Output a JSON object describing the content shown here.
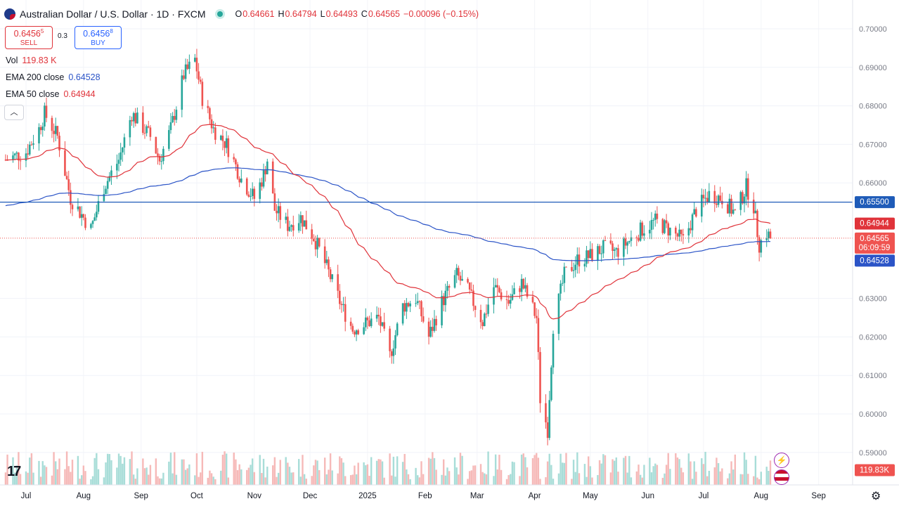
{
  "header": {
    "title": "Australian Dollar / U.S. Dollar · 1D · FXCM",
    "open_label": "O",
    "open": "0.64661",
    "high_label": "H",
    "high": "0.64794",
    "low_label": "L",
    "low": "0.64493",
    "close_label": "C",
    "close": "0.64565",
    "change": "−0.00096 (−0.15%)"
  },
  "trade": {
    "sell_price_main": "0.6456",
    "sell_price_sup": "5",
    "sell_label": "SELL",
    "spread": "0.3",
    "buy_price_main": "0.6456",
    "buy_price_sup": "8",
    "buy_label": "BUY"
  },
  "indicators": {
    "vol_label": "Vol",
    "vol_value": "119.83 K",
    "ema200_label": "EMA 200 close",
    "ema200_value": "0.64528",
    "ema50_label": "EMA 50 close",
    "ema50_value": "0.64944"
  },
  "icons": [
    "flag-icon",
    "collapse-chevron-icon",
    "tradingview-logo-icon",
    "lightning-icon",
    "us-flag-icon",
    "settings-gear-icon"
  ],
  "colors": {
    "up": "#26a69a",
    "down": "#ef5350",
    "ema50": "#e0333a",
    "ema200": "#2b54c7",
    "level": "#1e5bb8",
    "price_tag": "#ef5350",
    "vol_tag": "#ef5350"
  },
  "chart_data": {
    "type": "candlestick",
    "title": "Australian Dollar / U.S. Dollar · 1D · FXCM",
    "y_range": [
      0.585,
      0.702
    ],
    "y_ticks": [
      "0.70000",
      "0.69000",
      "0.68000",
      "0.67000",
      "0.66000",
      "0.65500",
      "0.64944",
      "0.64565",
      "0.64528",
      "0.63000",
      "0.62000",
      "0.61000",
      "0.60000",
      "0.59000"
    ],
    "y_tick_values": [
      0.7,
      0.69,
      0.68,
      0.67,
      0.66,
      0.63,
      0.62,
      0.61,
      0.6,
      0.59
    ],
    "x_ticks": [
      "Jul",
      "Aug",
      "Sep",
      "Oct",
      "Nov",
      "Dec",
      "2025",
      "Feb",
      "Mar",
      "Apr",
      "May",
      "Jun",
      "Jul",
      "Aug",
      "Sep"
    ],
    "x_tick_dates": [
      "2024-07-01",
      "2024-08-01",
      "2024-09-01",
      "2024-10-01",
      "2024-11-01",
      "2024-12-01",
      "2025-01-01",
      "2025-02-01",
      "2025-03-01",
      "2025-04-01",
      "2025-05-01",
      "2025-06-01",
      "2025-07-01",
      "2025-08-01",
      "2025-09-01"
    ],
    "horizontal_line": {
      "value": 0.655,
      "label": "0.65500"
    },
    "price_tag": {
      "value": 0.64565,
      "label": "0.64565",
      "countdown": "06:09:59"
    },
    "ema50_tag": {
      "value": 0.64944,
      "label": "0.64944"
    },
    "ema200_tag": {
      "value": 0.64528,
      "label": "0.64528"
    },
    "volume_tag": "119.83K",
    "close_path": [
      [
        "2024-06-20",
        0.666
      ],
      [
        "2024-07-01",
        0.668
      ],
      [
        "2024-07-08",
        0.674
      ],
      [
        "2024-07-11",
        0.678
      ],
      [
        "2024-07-18",
        0.672
      ],
      [
        "2024-07-25",
        0.656
      ],
      [
        "2024-08-01",
        0.651
      ],
      [
        "2024-08-05",
        0.648
      ],
      [
        "2024-08-12",
        0.659
      ],
      [
        "2024-08-20",
        0.666
      ],
      [
        "2024-08-27",
        0.678
      ],
      [
        "2024-09-06",
        0.672
      ],
      [
        "2024-09-11",
        0.666
      ],
      [
        "2024-09-17",
        0.674
      ],
      [
        "2024-09-24",
        0.688
      ],
      [
        "2024-09-30",
        0.692
      ],
      [
        "2024-10-04",
        0.682
      ],
      [
        "2024-10-10",
        0.674
      ],
      [
        "2024-10-17",
        0.67
      ],
      [
        "2024-10-25",
        0.661
      ],
      [
        "2024-11-01",
        0.656
      ],
      [
        "2024-11-06",
        0.662
      ],
      [
        "2024-11-08",
        0.666
      ],
      [
        "2024-11-12",
        0.653
      ],
      [
        "2024-11-19",
        0.649
      ],
      [
        "2024-11-26",
        0.651
      ],
      [
        "2024-12-03",
        0.646
      ],
      [
        "2024-12-10",
        0.638
      ],
      [
        "2024-12-18",
        0.628
      ],
      [
        "2024-12-24",
        0.622
      ],
      [
        "2025-01-07",
        0.625
      ],
      [
        "2025-01-13",
        0.615
      ],
      [
        "2025-01-20",
        0.628
      ],
      [
        "2025-01-27",
        0.63
      ],
      [
        "2025-02-03",
        0.62
      ],
      [
        "2025-02-10",
        0.629
      ],
      [
        "2025-02-18",
        0.636
      ],
      [
        "2025-02-24",
        0.632
      ],
      [
        "2025-03-04",
        0.624
      ],
      [
        "2025-03-10",
        0.633
      ],
      [
        "2025-03-18",
        0.629
      ],
      [
        "2025-03-25",
        0.634
      ],
      [
        "2025-04-02",
        0.625
      ],
      [
        "2025-04-04",
        0.604
      ],
      [
        "2025-04-08",
        0.596
      ],
      [
        "2025-04-11",
        0.623
      ],
      [
        "2025-04-17",
        0.636
      ],
      [
        "2025-04-24",
        0.64
      ],
      [
        "2025-05-01",
        0.641
      ],
      [
        "2025-05-08",
        0.643
      ],
      [
        "2025-05-15",
        0.642
      ],
      [
        "2025-05-22",
        0.645
      ],
      [
        "2025-05-29",
        0.648
      ],
      [
        "2025-06-05",
        0.65
      ],
      [
        "2025-06-12",
        0.648
      ],
      [
        "2025-06-20",
        0.645
      ],
      [
        "2025-06-27",
        0.653
      ],
      [
        "2025-07-04",
        0.657
      ],
      [
        "2025-07-11",
        0.656
      ],
      [
        "2025-07-18",
        0.652
      ],
      [
        "2025-07-24",
        0.659
      ],
      [
        "2025-07-28",
        0.654
      ],
      [
        "2025-07-31",
        0.644
      ],
      [
        "2025-08-04",
        0.647
      ],
      [
        "2025-08-06",
        0.64565
      ]
    ]
  }
}
